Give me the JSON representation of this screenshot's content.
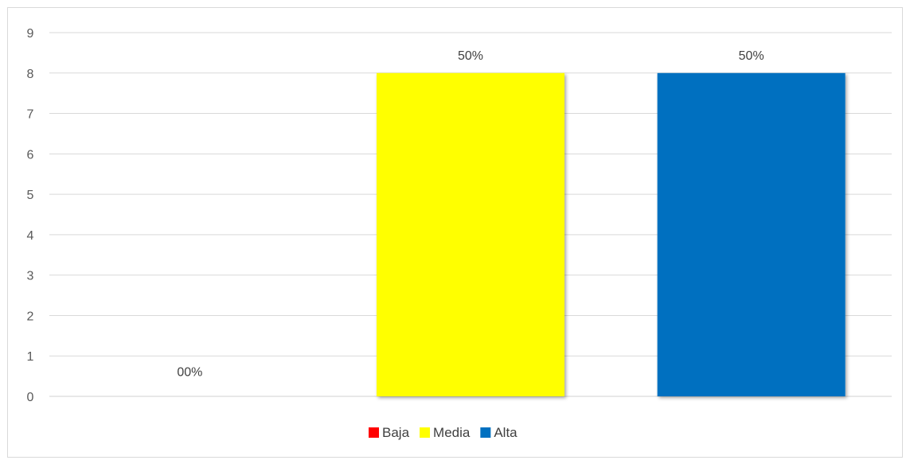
{
  "chart_data": {
    "type": "bar",
    "categories": [
      "Baja",
      "Media",
      "Alta"
    ],
    "values": [
      0,
      8,
      8
    ],
    "data_labels": [
      "00%",
      "50%",
      "50%"
    ],
    "colors": [
      "#ff0000",
      "#ffff00",
      "#0070c0"
    ],
    "title": "",
    "xlabel": "",
    "ylabel": "",
    "ylim": [
      0,
      9
    ],
    "yticks": [
      "0",
      "1",
      "2",
      "3",
      "4",
      "5",
      "6",
      "7",
      "8",
      "9"
    ],
    "grid": true,
    "legend": {
      "position": "bottom",
      "entries": [
        "Baja",
        "Media",
        "Alta"
      ]
    }
  }
}
